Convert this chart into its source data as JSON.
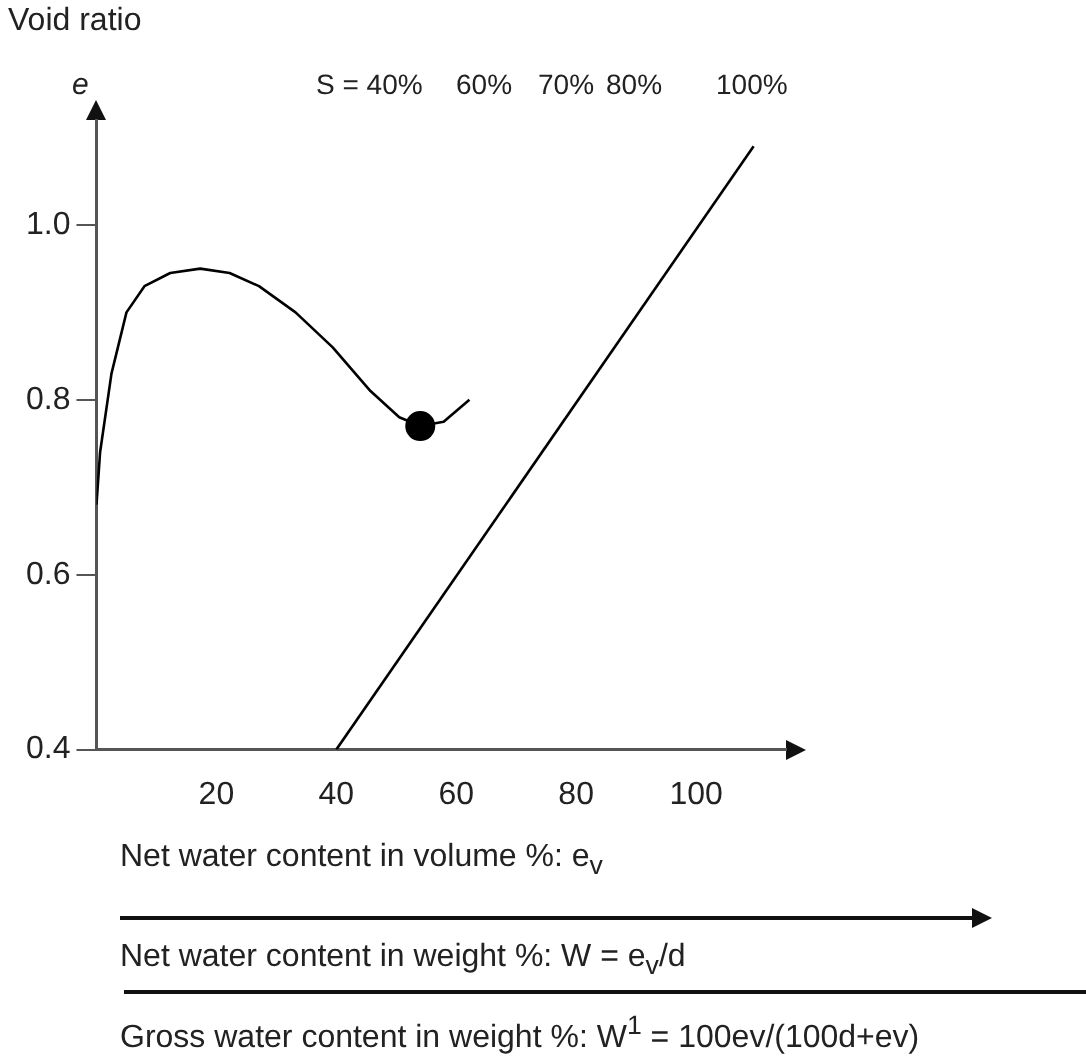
{
  "chart_data": {
    "type": "line",
    "ylabel": "Void ratio",
    "xlabel": "Net water content in volume %: e$_{v}$",
    "xlim": [
      0,
      115
    ],
    "ylim": [
      0.4,
      1.12
    ],
    "xticks": [
      20,
      40,
      60,
      80,
      100
    ],
    "yticks": [
      0.4,
      0.6,
      0.8,
      {
        "value": 1.0,
        "label": "1.0"
      }
    ],
    "grid": false,
    "legend": false,
    "series": [
      {
        "color": "#000000",
        "marker": "none",
        "x": [
          0,
          0.6,
          2.5,
          5.0,
          8.0,
          12.3,
          17.3,
          22.2,
          27.1,
          33.2,
          39.4,
          45.7,
          50.5,
          54.0,
          57.9,
          62.2
        ],
        "values": [
          0.68,
          0.74,
          0.83,
          0.9,
          0.93,
          0.945,
          0.95,
          0.945,
          0.93,
          0.9,
          0.86,
          0.81,
          0.78,
          0.77,
          0.775,
          0.8
        ]
      },
      {
        "type": "scatter",
        "color": "#000000",
        "marker": "circle",
        "x": [
          54.0
        ],
        "values": [
          0.77
        ]
      },
      {
        "type": "line",
        "color": "#000000",
        "marker": "none",
        "x": [
          40,
          109.6
        ],
        "values": [
          0.4,
          1.09
        ]
      }
    ],
    "annotations": [
      "S = 40%",
      "60%",
      "70%",
      "80%",
      "100%",
      "e",
      "Net water content in weight %: W = e$_{v}$/d",
      "Gross water content in weight %: W$^{1}$ = 100ev/(100d+ev)"
    ]
  }
}
